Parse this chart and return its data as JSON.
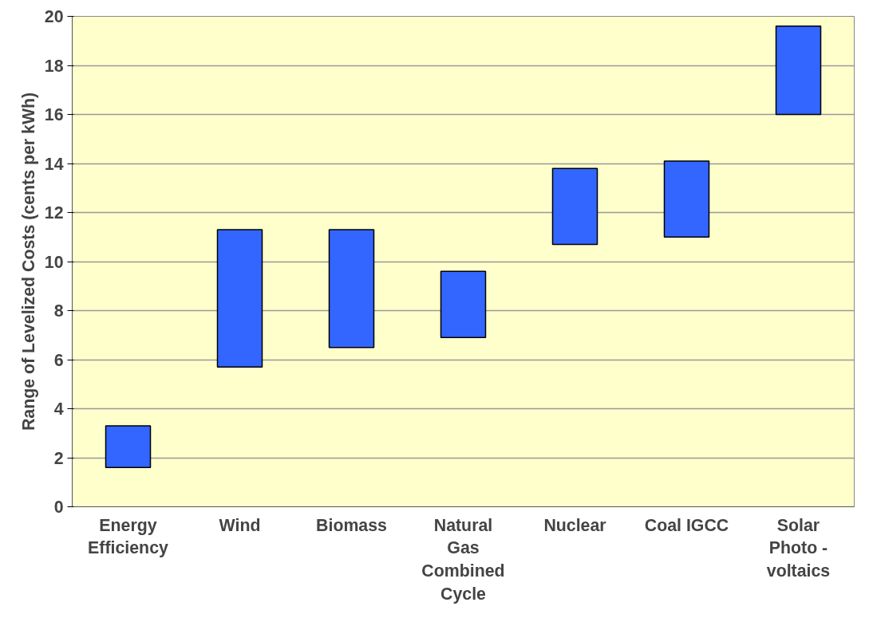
{
  "chart_data": {
    "type": "bar",
    "ylabel": "Range of Levelized Costs (cents per kWh)",
    "categories": [
      "Energy Efficiency",
      "Wind",
      "Biomass",
      "Natural Gas Combined Cycle",
      "Nuclear",
      "Coal IGCC",
      "Solar Photo - voltaics"
    ],
    "base": [
      1.6,
      5.7,
      6.5,
      6.9,
      10.7,
      11.0,
      16.0
    ],
    "values": [
      1.7,
      5.6,
      4.8,
      2.7,
      3.1,
      3.1,
      3.6
    ],
    "color": "#3366ff",
    "ylim": [
      0,
      20
    ],
    "yticks": [
      0,
      2,
      4,
      6,
      8,
      10,
      12,
      14,
      16,
      18,
      20
    ],
    "grid": "y"
  }
}
